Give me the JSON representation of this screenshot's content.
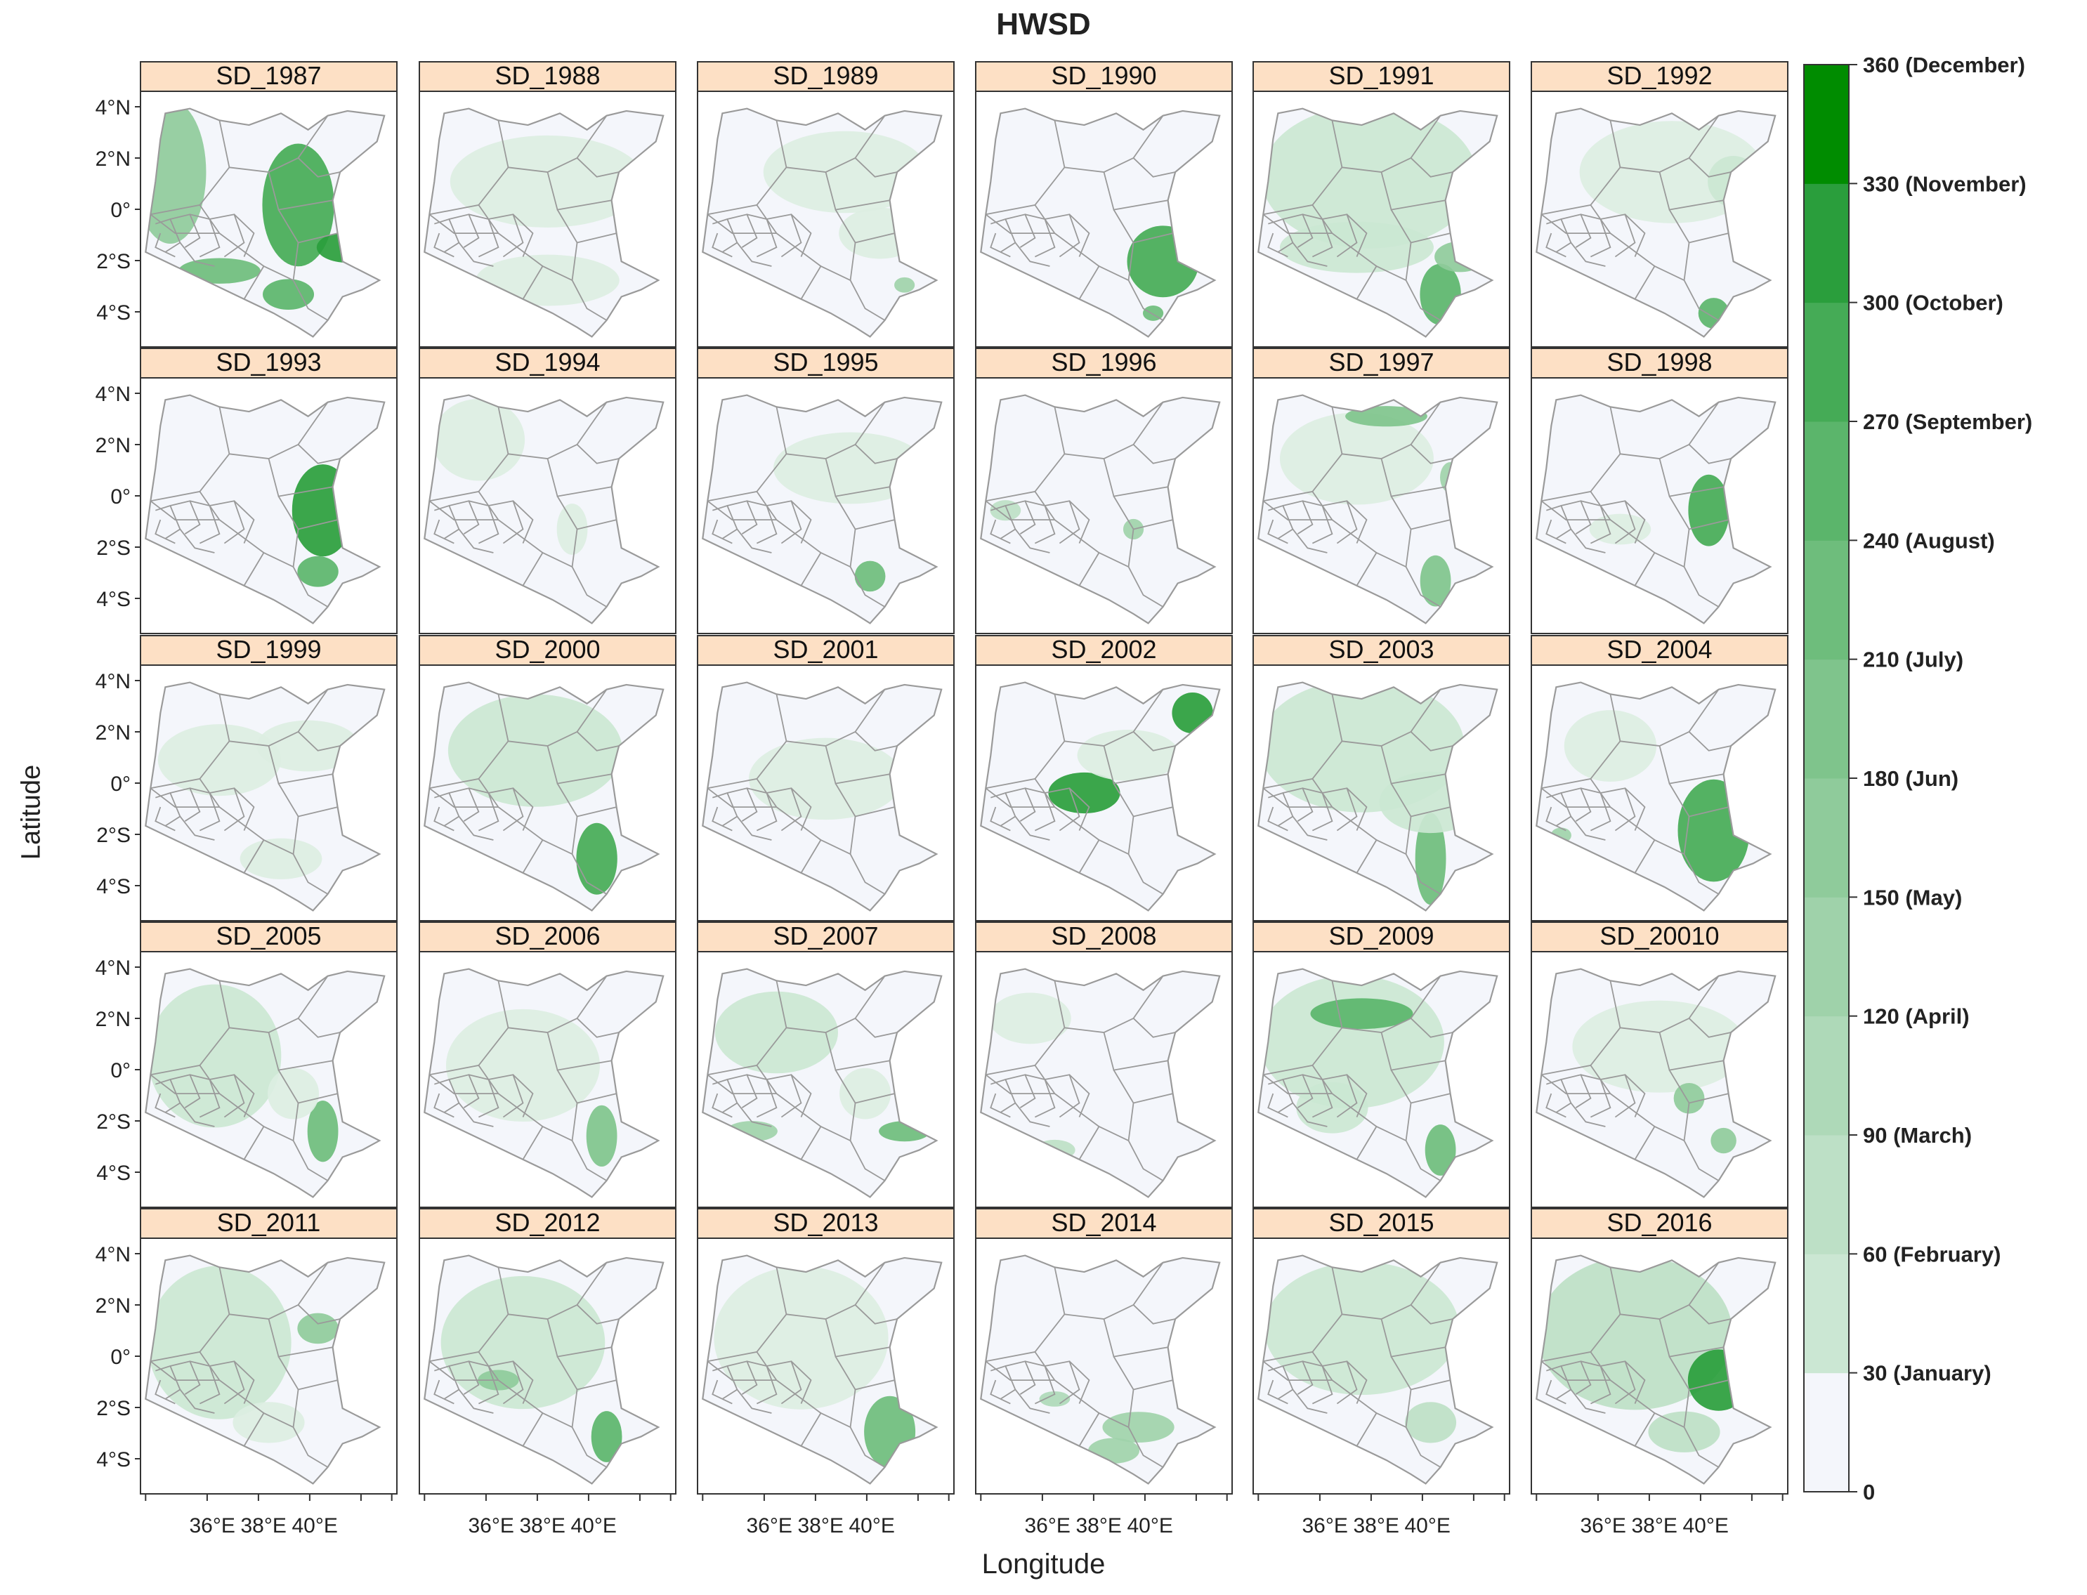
{
  "title": "HWSD",
  "xlabel": "Longitude",
  "ylabel": "Latitude",
  "y_ticks": [
    "4°N",
    "2°N",
    "0°",
    "2°S",
    "4°S"
  ],
  "x_ticks": [
    "36°E",
    "38°E",
    "40°E"
  ],
  "strip_color": "#fde0c5",
  "colorbar": {
    "ticks": [
      {
        "value": 0,
        "label": "0"
      },
      {
        "value": 30,
        "label": "30 (January)"
      },
      {
        "value": 60,
        "label": "60 (February)"
      },
      {
        "value": 90,
        "label": "90 (March)"
      },
      {
        "value": 120,
        "label": "120 (April)"
      },
      {
        "value": 150,
        "label": "150 (May)"
      },
      {
        "value": 180,
        "label": "180 (Jun)"
      },
      {
        "value": 210,
        "label": "210 (July)"
      },
      {
        "value": 240,
        "label": "240 (August)"
      },
      {
        "value": 270,
        "label": "270 (September)"
      },
      {
        "value": 300,
        "label": "300 (October)"
      },
      {
        "value": 330,
        "label": "330 (November)"
      },
      {
        "value": 360,
        "label": "360 (December)"
      }
    ],
    "colors": [
      "#f4f6fb",
      "#dceee2",
      "#cbe7d3",
      "#bde0c6",
      "#aed9b8",
      "#9fd2aa",
      "#8fcb9b",
      "#7fc48c",
      "#6ebd7c",
      "#5bb56b",
      "#45ab56",
      "#2a9e3c",
      "#008c00"
    ]
  },
  "panels": [
    {
      "label": "SD_1987"
    },
    {
      "label": "SD_1988"
    },
    {
      "label": "SD_1989"
    },
    {
      "label": "SD_1990"
    },
    {
      "label": "SD_1991"
    },
    {
      "label": "SD_1992"
    },
    {
      "label": "SD_1993"
    },
    {
      "label": "SD_1994"
    },
    {
      "label": "SD_1995"
    },
    {
      "label": "SD_1996"
    },
    {
      "label": "SD_1997"
    },
    {
      "label": "SD_1998"
    },
    {
      "label": "SD_1999"
    },
    {
      "label": "SD_2000"
    },
    {
      "label": "SD_2001"
    },
    {
      "label": "SD_2002"
    },
    {
      "label": "SD_2003"
    },
    {
      "label": "SD_2004"
    },
    {
      "label": "SD_2005"
    },
    {
      "label": "SD_2006"
    },
    {
      "label": "SD_2007"
    },
    {
      "label": "SD_2008"
    },
    {
      "label": "SD_2009"
    },
    {
      "label": "SD_20010"
    },
    {
      "label": "SD_2011"
    },
    {
      "label": "SD_2012"
    },
    {
      "label": "SD_2013"
    },
    {
      "label": "SD_2014"
    },
    {
      "label": "SD_2015"
    },
    {
      "label": "SD_2016"
    }
  ]
}
